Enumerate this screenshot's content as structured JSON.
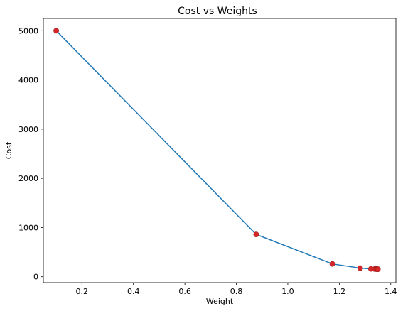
{
  "chart_data": {
    "type": "line",
    "title": "Cost vs Weights",
    "xlabel": "Weight",
    "ylabel": "Cost",
    "xlim": [
      0.05,
      1.42
    ],
    "ylim": [
      -120,
      5250
    ],
    "xticks": [
      0.2,
      0.4,
      0.6,
      0.8,
      1.0,
      1.2,
      1.4
    ],
    "xtick_labels": [
      "0.2",
      "0.4",
      "0.6",
      "0.8",
      "1.0",
      "1.2",
      "1.4"
    ],
    "yticks": [
      0,
      1000,
      2000,
      3000,
      4000,
      5000
    ],
    "ytick_labels": [
      "0",
      "1000",
      "2000",
      "3000",
      "4000",
      "5000"
    ],
    "grid": false,
    "series": [
      {
        "line_color": "#1f77b4",
        "marker_color": "#d62728",
        "x": [
          0.1,
          0.877,
          1.173,
          1.281,
          1.323,
          1.338,
          1.344,
          1.347,
          1.349,
          1.35
        ],
        "y": [
          5000,
          860,
          260,
          175,
          160,
          157,
          155,
          154,
          154,
          153
        ]
      }
    ]
  }
}
